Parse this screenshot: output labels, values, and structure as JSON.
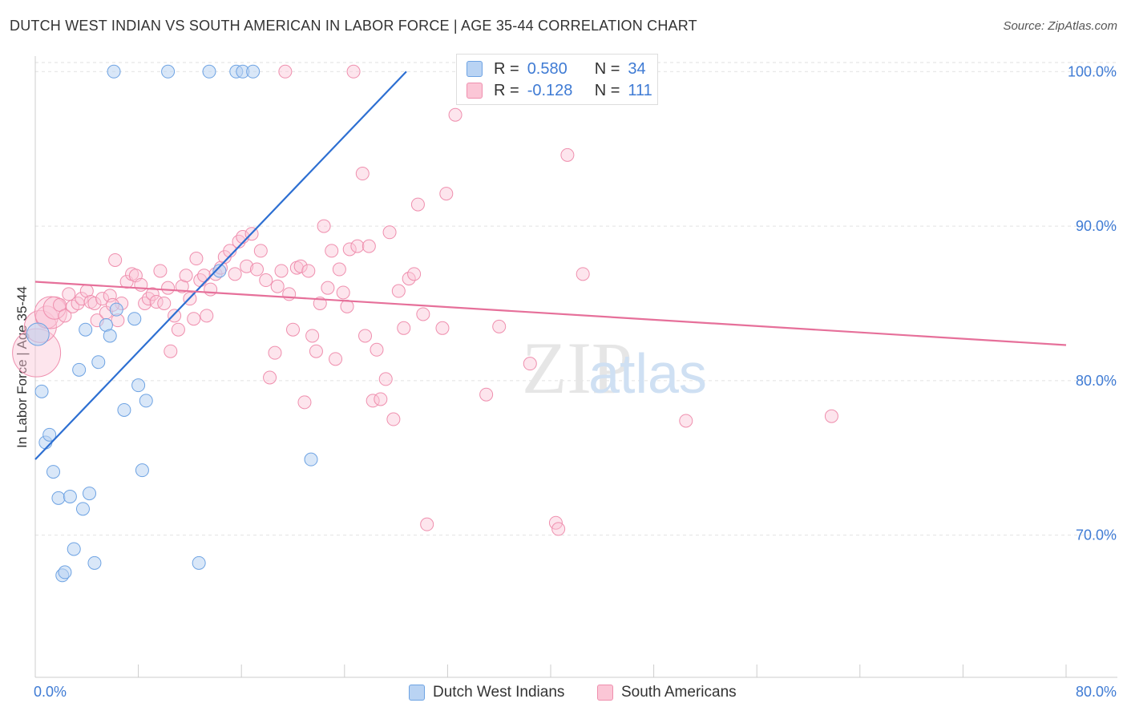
{
  "title": "DUTCH WEST INDIAN VS SOUTH AMERICAN IN LABOR FORCE | AGE 35-44 CORRELATION CHART",
  "source": "Source: ZipAtlas.com",
  "watermark": {
    "zip": "ZIP",
    "atlas": "atlas"
  },
  "legend_top": {
    "rows": [
      {
        "r_label": "R =",
        "r_value": "0.580",
        "n_label": "N =",
        "n_value": "34"
      },
      {
        "r_label": "R =",
        "r_value": "-0.128",
        "n_label": "N =",
        "n_value": "111"
      }
    ]
  },
  "chart_data": {
    "type": "scatter",
    "title": "DUTCH WEST INDIAN VS SOUTH AMERICAN IN LABOR FORCE | AGE 35-44 CORRELATION CHART",
    "xlabel": "",
    "ylabel": "In Labor Force | Age 35-44",
    "xlim": [
      0,
      80
    ],
    "ylim": [
      60.8,
      101
    ],
    "x_tick_labels": [
      "0.0%",
      "80.0%"
    ],
    "y_ticks": [
      70,
      80,
      90,
      100
    ],
    "y_tick_labels": [
      "70.0%",
      "80.0%",
      "90.0%",
      "100.0%"
    ],
    "grid": true,
    "legend_position": "bottom",
    "colors": {
      "Dutch West Indians": "#6ea3e3",
      "South Americans": "#ef8fae",
      "blue_line": "#2d6fd2",
      "pink_line": "#e6709a",
      "tick_label": "#3f7bd4"
    },
    "series": [
      {
        "name": "Dutch West Indians",
        "r": 0.58,
        "n": 34,
        "trend": {
          "x": [
            0,
            28.8
          ],
          "y": [
            74.9,
            100.0
          ]
        },
        "points": [
          {
            "x": 0.2,
            "y": 83.0,
            "size": 14
          },
          {
            "x": 0.5,
            "y": 79.3
          },
          {
            "x": 0.8,
            "y": 76.0
          },
          {
            "x": 1.1,
            "y": 76.5
          },
          {
            "x": 1.4,
            "y": 74.1
          },
          {
            "x": 1.8,
            "y": 72.4
          },
          {
            "x": 2.1,
            "y": 67.4
          },
          {
            "x": 2.3,
            "y": 67.6
          },
          {
            "x": 2.7,
            "y": 72.5
          },
          {
            "x": 3.0,
            "y": 69.1
          },
          {
            "x": 3.4,
            "y": 80.7
          },
          {
            "x": 3.7,
            "y": 71.7
          },
          {
            "x": 3.9,
            "y": 83.3
          },
          {
            "x": 4.2,
            "y": 72.7
          },
          {
            "x": 4.6,
            "y": 68.2
          },
          {
            "x": 4.9,
            "y": 81.2
          },
          {
            "x": 5.5,
            "y": 83.6
          },
          {
            "x": 5.8,
            "y": 82.9
          },
          {
            "x": 6.1,
            "y": 100.0
          },
          {
            "x": 6.3,
            "y": 84.6
          },
          {
            "x": 6.9,
            "y": 78.1
          },
          {
            "x": 7.7,
            "y": 84.0
          },
          {
            "x": 8.0,
            "y": 79.7
          },
          {
            "x": 8.3,
            "y": 74.2
          },
          {
            "x": 8.6,
            "y": 78.7
          },
          {
            "x": 10.3,
            "y": 100.0
          },
          {
            "x": 12.7,
            "y": 68.2
          },
          {
            "x": 13.5,
            "y": 100.0
          },
          {
            "x": 14.3,
            "y": 87.1
          },
          {
            "x": 15.6,
            "y": 100.0
          },
          {
            "x": 16.1,
            "y": 100.0
          },
          {
            "x": 16.9,
            "y": 100.0
          },
          {
            "x": 21.4,
            "y": 74.9
          },
          {
            "x": 34.6,
            "y": 100.0
          }
        ]
      },
      {
        "name": "South Americans",
        "r": -0.128,
        "n": 111,
        "trend": {
          "x": [
            0,
            80
          ],
          "y": [
            86.4,
            82.3
          ]
        },
        "points": [
          {
            "x": 0.1,
            "y": 81.8,
            "size": 30
          },
          {
            "x": 0.4,
            "y": 83.5,
            "size": 20
          },
          {
            "x": 0.9,
            "y": 84.1,
            "size": 14
          },
          {
            "x": 1.2,
            "y": 84.4,
            "size": 20
          },
          {
            "x": 1.5,
            "y": 84.7,
            "size": 14
          },
          {
            "x": 1.9,
            "y": 84.9
          },
          {
            "x": 2.3,
            "y": 84.2
          },
          {
            "x": 2.6,
            "y": 85.6
          },
          {
            "x": 2.9,
            "y": 84.8
          },
          {
            "x": 3.3,
            "y": 85.0
          },
          {
            "x": 3.6,
            "y": 85.3
          },
          {
            "x": 4.0,
            "y": 85.8
          },
          {
            "x": 4.3,
            "y": 85.1
          },
          {
            "x": 4.6,
            "y": 85.0
          },
          {
            "x": 4.8,
            "y": 83.9
          },
          {
            "x": 5.2,
            "y": 85.3
          },
          {
            "x": 5.5,
            "y": 84.4
          },
          {
            "x": 5.8,
            "y": 85.5
          },
          {
            "x": 6.2,
            "y": 87.8
          },
          {
            "x": 6.4,
            "y": 83.9
          },
          {
            "x": 6.7,
            "y": 85.0
          },
          {
            "x": 7.1,
            "y": 86.4
          },
          {
            "x": 7.5,
            "y": 86.9
          },
          {
            "x": 7.8,
            "y": 86.8
          },
          {
            "x": 8.2,
            "y": 86.2
          },
          {
            "x": 8.5,
            "y": 85.0
          },
          {
            "x": 8.8,
            "y": 85.3
          },
          {
            "x": 9.1,
            "y": 85.6
          },
          {
            "x": 9.4,
            "y": 85.1
          },
          {
            "x": 9.7,
            "y": 87.1
          },
          {
            "x": 10.0,
            "y": 85.0
          },
          {
            "x": 10.3,
            "y": 86.0
          },
          {
            "x": 10.5,
            "y": 81.9
          },
          {
            "x": 10.8,
            "y": 84.2
          },
          {
            "x": 11.1,
            "y": 83.3
          },
          {
            "x": 11.4,
            "y": 86.1
          },
          {
            "x": 11.7,
            "y": 86.8
          },
          {
            "x": 12.0,
            "y": 85.3
          },
          {
            "x": 12.3,
            "y": 84.0
          },
          {
            "x": 12.5,
            "y": 87.9
          },
          {
            "x": 12.8,
            "y": 86.5
          },
          {
            "x": 13.1,
            "y": 86.8
          },
          {
            "x": 13.3,
            "y": 84.2
          },
          {
            "x": 13.6,
            "y": 85.9
          },
          {
            "x": 14.0,
            "y": 86.9
          },
          {
            "x": 14.4,
            "y": 87.3
          },
          {
            "x": 14.7,
            "y": 88.0
          },
          {
            "x": 15.1,
            "y": 88.4
          },
          {
            "x": 15.5,
            "y": 86.9
          },
          {
            "x": 15.8,
            "y": 89.0
          },
          {
            "x": 16.1,
            "y": 89.3
          },
          {
            "x": 16.4,
            "y": 87.4
          },
          {
            "x": 16.8,
            "y": 89.5
          },
          {
            "x": 17.2,
            "y": 87.2
          },
          {
            "x": 17.5,
            "y": 88.4
          },
          {
            "x": 17.9,
            "y": 86.5
          },
          {
            "x": 18.2,
            "y": 80.2
          },
          {
            "x": 18.6,
            "y": 81.8
          },
          {
            "x": 18.8,
            "y": 86.1
          },
          {
            "x": 19.1,
            "y": 87.1
          },
          {
            "x": 19.4,
            "y": 100.0
          },
          {
            "x": 19.7,
            "y": 85.6
          },
          {
            "x": 20.0,
            "y": 83.3
          },
          {
            "x": 20.3,
            "y": 87.3
          },
          {
            "x": 20.6,
            "y": 87.4
          },
          {
            "x": 20.9,
            "y": 78.6
          },
          {
            "x": 21.2,
            "y": 87.1
          },
          {
            "x": 21.5,
            "y": 82.9
          },
          {
            "x": 21.8,
            "y": 81.9
          },
          {
            "x": 22.1,
            "y": 85.0
          },
          {
            "x": 22.4,
            "y": 90.0
          },
          {
            "x": 22.7,
            "y": 86.0
          },
          {
            "x": 23.0,
            "y": 88.4
          },
          {
            "x": 23.3,
            "y": 81.4
          },
          {
            "x": 23.6,
            "y": 87.2
          },
          {
            "x": 23.9,
            "y": 85.7
          },
          {
            "x": 24.2,
            "y": 84.8
          },
          {
            "x": 24.4,
            "y": 88.5
          },
          {
            "x": 24.7,
            "y": 100.0
          },
          {
            "x": 25.0,
            "y": 88.7
          },
          {
            "x": 25.4,
            "y": 93.4
          },
          {
            "x": 25.6,
            "y": 82.9
          },
          {
            "x": 25.9,
            "y": 88.7
          },
          {
            "x": 26.2,
            "y": 78.7
          },
          {
            "x": 26.5,
            "y": 82.0
          },
          {
            "x": 26.8,
            "y": 78.8
          },
          {
            "x": 27.2,
            "y": 80.1
          },
          {
            "x": 27.5,
            "y": 89.6
          },
          {
            "x": 27.8,
            "y": 77.5
          },
          {
            "x": 28.2,
            "y": 85.8
          },
          {
            "x": 28.6,
            "y": 83.4
          },
          {
            "x": 29.0,
            "y": 86.6
          },
          {
            "x": 29.4,
            "y": 86.9
          },
          {
            "x": 29.7,
            "y": 91.4
          },
          {
            "x": 30.1,
            "y": 84.3
          },
          {
            "x": 30.4,
            "y": 70.7
          },
          {
            "x": 31.6,
            "y": 83.4
          },
          {
            "x": 31.9,
            "y": 92.1
          },
          {
            "x": 32.6,
            "y": 97.2
          },
          {
            "x": 35.0,
            "y": 79.1
          },
          {
            "x": 36.0,
            "y": 83.5
          },
          {
            "x": 38.4,
            "y": 81.1
          },
          {
            "x": 40.4,
            "y": 70.8
          },
          {
            "x": 40.6,
            "y": 70.4
          },
          {
            "x": 41.3,
            "y": 94.6
          },
          {
            "x": 42.5,
            "y": 86.9
          },
          {
            "x": 50.5,
            "y": 77.4
          },
          {
            "x": 61.8,
            "y": 77.7
          },
          {
            "x": 6.0,
            "y": 84.9
          }
        ]
      }
    ]
  },
  "legend_bottom": {
    "items": [
      "Dutch West Indians",
      "South Americans"
    ]
  }
}
